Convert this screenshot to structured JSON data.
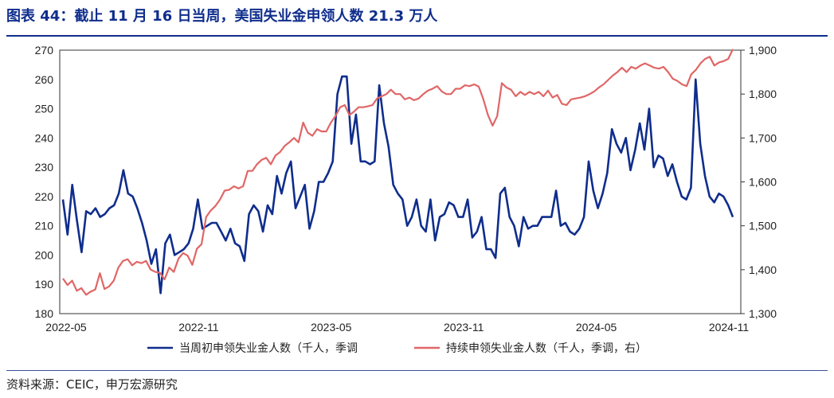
{
  "header": {
    "title": "图表 44：截止 11 月 16 日当周，美国失业金申领人数 21.3 万人"
  },
  "footer": {
    "source": "资料来源：CEIC，申万宏源研究"
  },
  "colors": {
    "initial": "#0f2d8c",
    "continuing": "#e06666",
    "axis": "#222222"
  },
  "chart_data": {
    "type": "line",
    "title": "图表 44：截止 11 月 16 日当周，美国失业金申领人数 21.3 万人",
    "x_ticks": [
      "2022-05",
      "2022-11",
      "2023-05",
      "2023-11",
      "2024-05",
      "2024-11"
    ],
    "left_axis": {
      "ylim": [
        180,
        270
      ],
      "ticks": [
        "180",
        "190",
        "200",
        "210",
        "220",
        "230",
        "240",
        "250",
        "260",
        "270"
      ]
    },
    "right_axis": {
      "ylim": [
        1300,
        1900
      ],
      "ticks": [
        "1,300",
        "1,400",
        "1,500",
        "1,600",
        "1,700",
        "1,800",
        "1,900"
      ]
    },
    "series": [
      {
        "name": "当周初申领失业金人数（千人，季调",
        "axis": "left",
        "color": "#0f2d8c",
        "values": [
          219,
          207,
          224,
          212,
          201,
          215,
          214,
          216,
          213,
          214,
          216,
          217,
          221,
          229,
          221,
          220,
          216,
          211,
          205,
          197,
          202,
          187,
          204,
          207,
          200,
          201,
          202,
          204,
          209,
          219,
          209,
          210,
          211,
          211,
          208,
          205,
          209,
          204,
          203,
          198,
          214,
          217,
          215,
          208,
          217,
          214,
          227,
          221,
          228,
          232,
          216,
          220,
          224,
          209,
          215,
          225,
          225,
          228,
          232,
          255,
          261,
          261,
          238,
          248,
          232,
          232,
          231,
          232,
          258,
          245,
          237,
          224,
          221,
          219,
          210,
          213,
          219,
          210,
          208,
          219,
          205,
          213,
          214,
          218,
          217,
          213,
          213,
          219,
          206,
          208,
          213,
          202,
          202,
          199,
          221,
          223,
          213,
          210,
          203,
          213,
          209,
          210,
          210,
          213,
          213,
          213,
          222,
          210,
          211,
          208,
          207,
          209,
          213,
          232,
          222,
          216,
          221,
          228,
          243,
          238,
          235,
          240,
          229,
          236,
          245,
          236,
          250,
          230,
          234,
          233,
          227,
          231,
          225,
          220,
          219,
          223,
          260,
          238,
          227,
          220,
          218,
          221,
          220,
          217,
          213
        ]
      },
      {
        "name": "持续申领失业金人数（千人，季调，右）",
        "axis": "right",
        "color": "#e06666",
        "values": [
          1380,
          1365,
          1375,
          1352,
          1358,
          1343,
          1350,
          1355,
          1392,
          1356,
          1362,
          1375,
          1405,
          1420,
          1424,
          1410,
          1418,
          1415,
          1420,
          1400,
          1395,
          1393,
          1378,
          1405,
          1395,
          1425,
          1438,
          1432,
          1411,
          1448,
          1458,
          1520,
          1535,
          1545,
          1560,
          1580,
          1582,
          1590,
          1585,
          1590,
          1625,
          1625,
          1640,
          1650,
          1655,
          1640,
          1660,
          1668,
          1682,
          1690,
          1700,
          1690,
          1735,
          1712,
          1705,
          1720,
          1715,
          1715,
          1735,
          1750,
          1770,
          1775,
          1752,
          1760,
          1770,
          1770,
          1772,
          1775,
          1790,
          1795,
          1800,
          1810,
          1800,
          1800,
          1788,
          1792,
          1786,
          1790,
          1800,
          1808,
          1812,
          1818,
          1806,
          1800,
          1800,
          1812,
          1812,
          1820,
          1818,
          1822,
          1817,
          1788,
          1752,
          1728,
          1750,
          1825,
          1815,
          1810,
          1795,
          1805,
          1798,
          1805,
          1800,
          1805,
          1795,
          1808,
          1792,
          1798,
          1778,
          1775,
          1788,
          1790,
          1792,
          1795,
          1800,
          1806,
          1815,
          1822,
          1832,
          1842,
          1850,
          1860,
          1850,
          1862,
          1858,
          1865,
          1870,
          1865,
          1860,
          1858,
          1862,
          1850,
          1835,
          1830,
          1822,
          1818,
          1845,
          1855,
          1870,
          1880,
          1885,
          1865,
          1872,
          1875,
          1880,
          1902
        ]
      }
    ],
    "legend_position": "bottom"
  }
}
